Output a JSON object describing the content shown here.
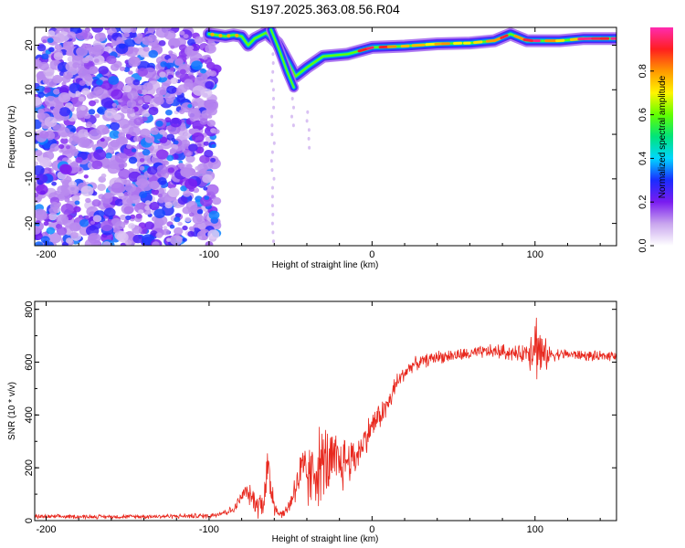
{
  "chart_data": {
    "title": "S197.2025.363.08.56.R04",
    "charts": [
      {
        "type": "heatmap",
        "xlabel": "Height of straight line (km)",
        "ylabel": "Frequency (Hz)",
        "xlim": [
          -207,
          150
        ],
        "ylim": [
          -25,
          24
        ],
        "xticks": [
          -200,
          -100,
          0,
          100
        ],
        "yticks": [
          20,
          10,
          0,
          -10,
          -20
        ],
        "noise_region_x": [
          -207,
          -95
        ],
        "signal_track": [
          {
            "x": -100,
            "y": 22.5
          },
          {
            "x": -90,
            "y": 22.0
          },
          {
            "x": -85,
            "y": 22.3
          },
          {
            "x": -80,
            "y": 22.0
          },
          {
            "x": -76,
            "y": 20.0
          },
          {
            "x": -72,
            "y": 21.5
          },
          {
            "x": -65,
            "y": 22.8
          },
          {
            "x": -58,
            "y": 20.5
          },
          {
            "x": -52,
            "y": 16.5
          },
          {
            "x": -47,
            "y": 13.0
          },
          {
            "x": -40,
            "y": 15.0
          },
          {
            "x": -30,
            "y": 17.5
          },
          {
            "x": -15,
            "y": 18.0
          },
          {
            "x": 0,
            "y": 19.5
          },
          {
            "x": 20,
            "y": 19.8
          },
          {
            "x": 40,
            "y": 20.3
          },
          {
            "x": 60,
            "y": 20.5
          },
          {
            "x": 75,
            "y": 21.0
          },
          {
            "x": 85,
            "y": 22.5
          },
          {
            "x": 95,
            "y": 21.0
          },
          {
            "x": 115,
            "y": 21.0
          },
          {
            "x": 130,
            "y": 21.5
          },
          {
            "x": 150,
            "y": 21.5
          }
        ],
        "secondary_track": [
          {
            "x": -62,
            "y": 23.5
          },
          {
            "x": -57,
            "y": 19.0
          },
          {
            "x": -52,
            "y": 14.0
          },
          {
            "x": -48,
            "y": 10.5
          }
        ]
      },
      {
        "type": "line",
        "xlabel": "Height of straight line (km)",
        "ylabel": "SNR (10 * v/v)",
        "xlim": [
          -207,
          150
        ],
        "ylim": [
          0,
          830
        ],
        "xticks": [
          -200,
          -100,
          0,
          100
        ],
        "yticks": [
          0,
          200,
          400,
          600,
          800
        ],
        "series": [
          {
            "name": "SNR",
            "color": "#e8281e",
            "x": [
              -207,
              -150,
              -100,
              -85,
              -78,
              -74,
              -70,
              -67,
              -64,
              -61,
              -58,
              -54,
              -50,
              -46,
              -42,
              -38,
              -34,
              -30,
              -25,
              -20,
              -15,
              -10,
              -5,
              0,
              5,
              10,
              15,
              20,
              25,
              30,
              40,
              50,
              60,
              70,
              80,
              90,
              95,
              100,
              105,
              110,
              120,
              130,
              140,
              150
            ],
            "mean": [
              15,
              15,
              18,
              40,
              110,
              90,
              60,
              70,
              190,
              100,
              30,
              25,
              70,
              150,
              180,
              160,
              200,
              220,
              210,
              215,
              230,
              240,
              300,
              360,
              400,
              440,
              520,
              560,
              590,
              600,
              620,
              625,
              630,
              640,
              640,
              630,
              640,
              680,
              620,
              630,
              630,
              625,
              620,
              630
            ],
            "noise": [
              8,
              8,
              10,
              15,
              30,
              40,
              50,
              60,
              120,
              90,
              20,
              15,
              40,
              80,
              120,
              130,
              150,
              150,
              140,
              120,
              100,
              70,
              60,
              60,
              50,
              50,
              40,
              30,
              25,
              25,
              25,
              25,
              25,
              25,
              30,
              30,
              40,
              150,
              80,
              25,
              20,
              20,
              20,
              20
            ]
          }
        ]
      }
    ],
    "colorbar": {
      "label": "Normalized spectral amplitude",
      "ticks": [
        "0.0",
        "0.2",
        "0.4",
        "0.6",
        "0.8"
      ],
      "range": [
        0,
        1
      ],
      "colors": [
        "#ffffff",
        "#c9a6ee",
        "#7a1cf0",
        "#1a2cff",
        "#00d6ff",
        "#00e47a",
        "#62ff00",
        "#fff500",
        "#ff9800",
        "#ff1f1f",
        "#ff2bb0"
      ]
    }
  }
}
